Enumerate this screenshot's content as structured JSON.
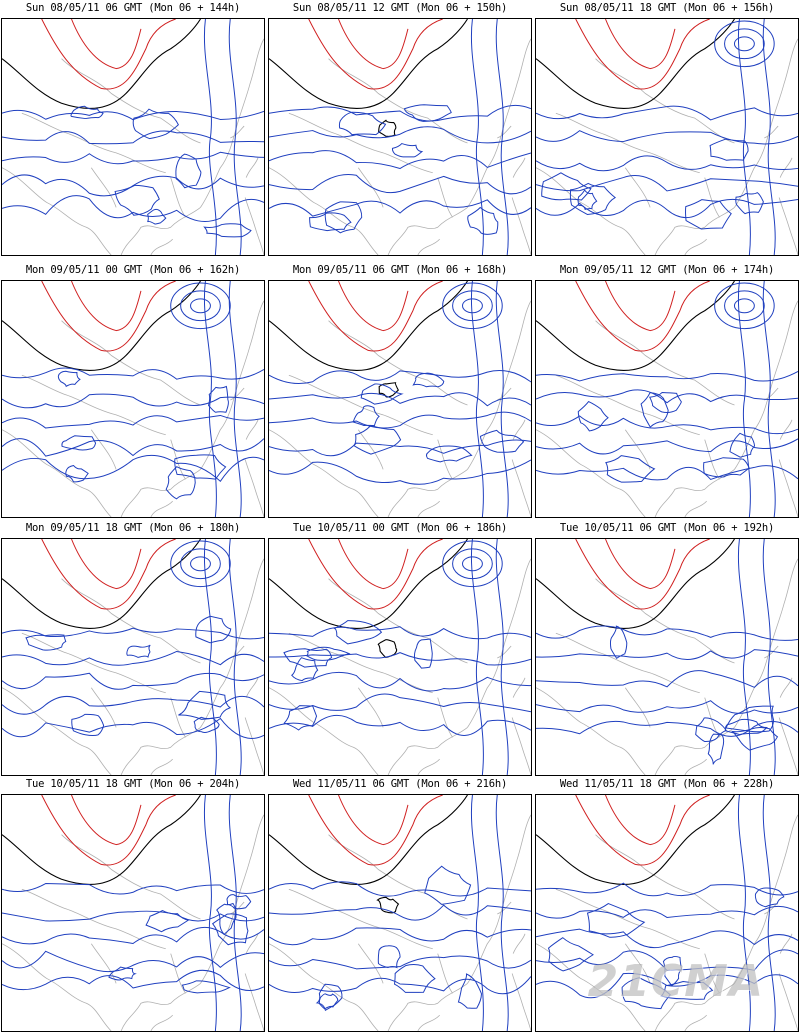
{
  "colors": {
    "coast": "#b0b0b0",
    "contour_cold": "#1f3fbf",
    "contour_zero": "#000000",
    "contour_warm": "#d02020"
  },
  "panels": [
    {
      "title": "Sun 08/05/11 06 GMT (Mon 06 + 144h)"
    },
    {
      "title": "Sun 08/05/11 12 GMT (Mon 06 + 150h)"
    },
    {
      "title": "Sun 08/05/11 18 GMT (Mon 06 + 156h)"
    },
    {
      "title": "Mon 09/05/11 00 GMT (Mon 06 + 162h)"
    },
    {
      "title": "Mon 09/05/11 06 GMT (Mon 06 + 168h)"
    },
    {
      "title": "Mon 09/05/11 12 GMT (Mon 06 + 174h)"
    },
    {
      "title": "Mon 09/05/11 18 GMT (Mon 06 + 180h)"
    },
    {
      "title": "Tue 10/05/11 00 GMT (Mon 06 + 186h)"
    },
    {
      "title": "Tue 10/05/11 06 GMT (Mon 06 + 192h)"
    },
    {
      "title": "Tue 10/05/11 18 GMT (Mon 06 + 204h)"
    },
    {
      "title": "Wed 11/05/11 06 GMT (Mon 06 + 216h)"
    },
    {
      "title": "Wed 11/05/11 18 GMT (Mon 06 + 228h)"
    }
  ],
  "watermark": "21CMA"
}
